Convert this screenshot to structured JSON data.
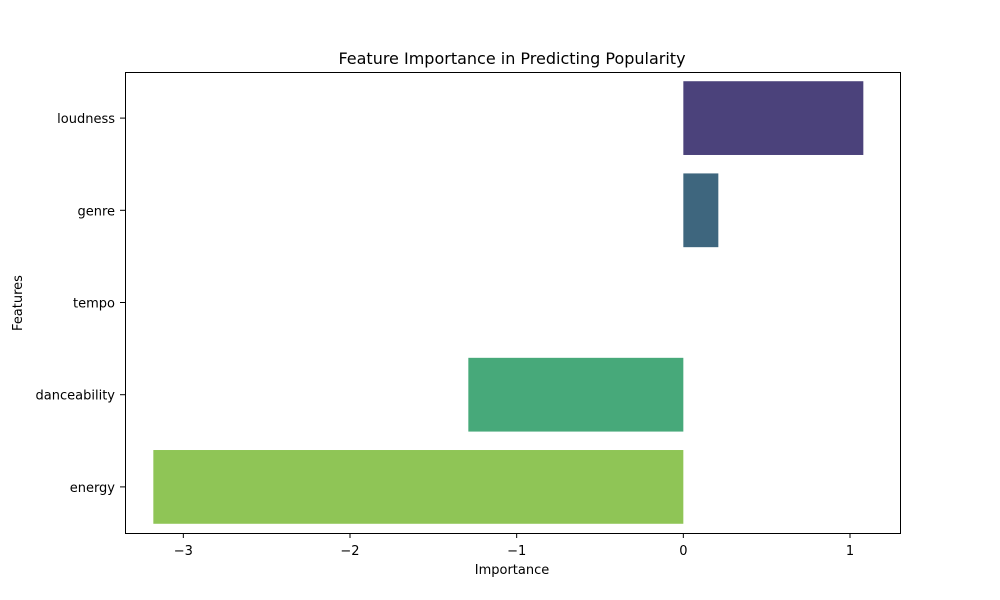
{
  "chart_data": {
    "type": "bar",
    "orientation": "horizontal",
    "title": "Feature Importance in Predicting Popularity",
    "xlabel": "Importance",
    "ylabel": "Features",
    "categories": [
      "loudness",
      "genre",
      "tempo",
      "danceability",
      "energy"
    ],
    "values": [
      1.08,
      0.21,
      0.0,
      -1.29,
      -3.18
    ],
    "colors": [
      "#4b427b",
      "#3e667e",
      "#2e9b88",
      "#47a97a",
      "#8fc556"
    ],
    "xlim": [
      -3.35,
      1.3
    ],
    "xticks": [
      {
        "value": -3,
        "label": "−3"
      },
      {
        "value": -2,
        "label": "−2"
      },
      {
        "value": -1,
        "label": "−1"
      },
      {
        "value": 0,
        "label": "0"
      },
      {
        "value": 1,
        "label": "1"
      }
    ],
    "grid": false,
    "legend": "none"
  }
}
